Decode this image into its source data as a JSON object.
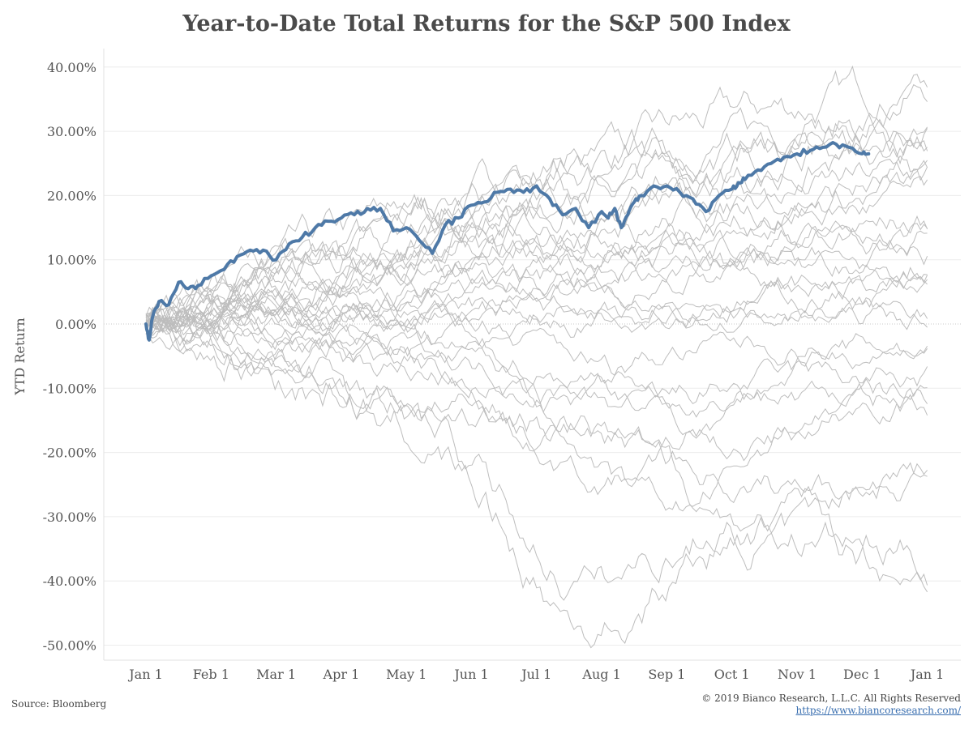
{
  "chart_data": {
    "type": "line",
    "title": "Year-to-Date Total Returns for the S&P 500 Index",
    "ylabel": "YTD Return",
    "xlabel": "",
    "x_ticks": [
      "Jan 1",
      "Feb 1",
      "Mar 1",
      "Apr 1",
      "May 1",
      "Jun 1",
      "Jul 1",
      "Aug 1",
      "Sep 1",
      "Oct 1",
      "Nov 1",
      "Dec 1",
      "Jan 1"
    ],
    "y_ticks": [
      "40.00%",
      "30.00%",
      "20.00%",
      "10.00%",
      "0.00%",
      "-10.00%",
      "-20.00%",
      "-30.00%",
      "-40.00%",
      "-50.00%"
    ],
    "ylim": [
      -52,
      42
    ],
    "zero_line": "dotted",
    "grid": "horizontal",
    "highlight_color": "#4e79a7",
    "background_series_color": "#bdbdbd",
    "highlight_series": {
      "x_month": [
        0,
        0.05,
        0.1,
        0.2,
        0.35,
        0.5,
        0.65,
        0.8,
        1.0,
        1.2,
        1.4,
        1.6,
        1.8,
        2.0,
        2.2,
        2.4,
        2.6,
        2.8,
        3.0,
        3.2,
        3.4,
        3.6,
        3.8,
        4.0,
        4.2,
        4.4,
        4.6,
        4.8,
        5.0,
        5.2,
        5.4,
        5.6,
        5.8,
        6.0,
        6.2,
        6.4,
        6.6,
        6.8,
        7.0,
        7.1,
        7.2,
        7.3,
        7.4,
        7.5,
        7.6,
        7.8,
        8.0,
        8.2,
        8.4,
        8.6,
        8.8,
        9.0,
        9.1,
        9.2,
        9.4,
        9.6,
        9.8,
        10.0,
        10.2,
        10.4,
        10.6,
        10.8,
        11.0,
        11.1
      ],
      "values": [
        0.0,
        -2.5,
        1.0,
        3.5,
        3.0,
        6.5,
        5.5,
        6.0,
        7.5,
        8.5,
        10.5,
        11.5,
        11.5,
        10.0,
        12.5,
        13.5,
        15.0,
        16.0,
        16.5,
        17.0,
        18.0,
        18.0,
        14.5,
        15.0,
        13.0,
        11.0,
        15.5,
        16.5,
        18.5,
        19.0,
        20.5,
        21.0,
        20.5,
        21.5,
        19.5,
        17.0,
        18.0,
        15.0,
        17.5,
        16.5,
        18.0,
        15.0,
        17.0,
        19.0,
        20.0,
        21.5,
        21.5,
        20.5,
        19.5,
        17.5,
        20.0,
        21.0,
        22.0,
        22.5,
        24.0,
        25.0,
        26.0,
        26.5,
        27.0,
        27.5,
        28.0,
        27.5,
        26.5,
        26.5
      ]
    },
    "background_series_count": 30,
    "background_series": [
      {
        "final": 37.5,
        "mid": 8,
        "dip": 0
      },
      {
        "final": 33.0,
        "mid": 10,
        "dip": 0
      },
      {
        "final": 31.0,
        "mid": 9,
        "dip": 0
      },
      {
        "final": 30.0,
        "mid": 7,
        "dip": 0
      },
      {
        "final": 28.5,
        "mid": 8,
        "dip": 0
      },
      {
        "final": 27.0,
        "mid": 6,
        "dip": 0
      },
      {
        "final": 23.0,
        "mid": 5,
        "dip": 0
      },
      {
        "final": 22.0,
        "mid": 7,
        "dip": 0
      },
      {
        "final": 21.0,
        "mid": 6,
        "dip": 0
      },
      {
        "final": 19.0,
        "mid": 4,
        "dip": 0
      },
      {
        "final": 16.0,
        "mid": 5,
        "dip": 0
      },
      {
        "final": 15.5,
        "mid": 3,
        "dip": 0
      },
      {
        "final": 14.0,
        "mid": 4,
        "dip": 0
      },
      {
        "final": 11.0,
        "mid": 3,
        "dip": 0
      },
      {
        "final": 10.0,
        "mid": 2,
        "dip": 0
      },
      {
        "final": 8.0,
        "mid": 2,
        "dip": 0
      },
      {
        "final": 6.0,
        "mid": 1,
        "dip": 0
      },
      {
        "final": 5.0,
        "mid": 0,
        "dip": 0
      },
      {
        "final": 2.0,
        "mid": 1,
        "dip": 0
      },
      {
        "final": 1.0,
        "mid": 0,
        "dip": 0
      },
      {
        "final": -3.0,
        "mid": -2,
        "dip": -12
      },
      {
        "final": -4.0,
        "mid": -1,
        "dip": -10
      },
      {
        "final": -9.0,
        "mid": -3,
        "dip": -14
      },
      {
        "final": -10.0,
        "mid": -2,
        "dip": -20
      },
      {
        "final": -11.5,
        "mid": -4,
        "dip": -25
      },
      {
        "final": -12.0,
        "mid": -5,
        "dip": -30
      },
      {
        "final": -22.0,
        "mid": -8,
        "dip": -24
      },
      {
        "final": -22.5,
        "mid": -6,
        "dip": -30
      },
      {
        "final": -37.0,
        "mid": -3,
        "dip": -41
      },
      {
        "final": -39.0,
        "mid": -4,
        "dip": -48
      }
    ]
  },
  "footer": {
    "source": "Source: Bloomberg",
    "copyright": "© 2019 Bianco Research, L.L.C. All Rights Reserved",
    "website": "https://www.biancoresearch.com/"
  }
}
